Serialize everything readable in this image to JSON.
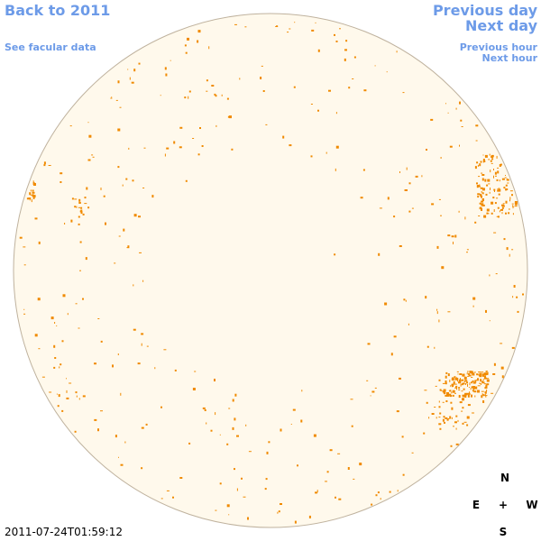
{
  "links": {
    "back": "Back to 2011",
    "facular": "See facular data",
    "previous_day": "Previous day",
    "next_day": "Next day",
    "previous_hour": "Previous hour",
    "next_hour": "Next hour"
  },
  "timestamp": "2011-07-24T01:59:12",
  "compass": {
    "north": "N",
    "east": "E",
    "center": "+",
    "west": "W",
    "south": "S"
  }
}
